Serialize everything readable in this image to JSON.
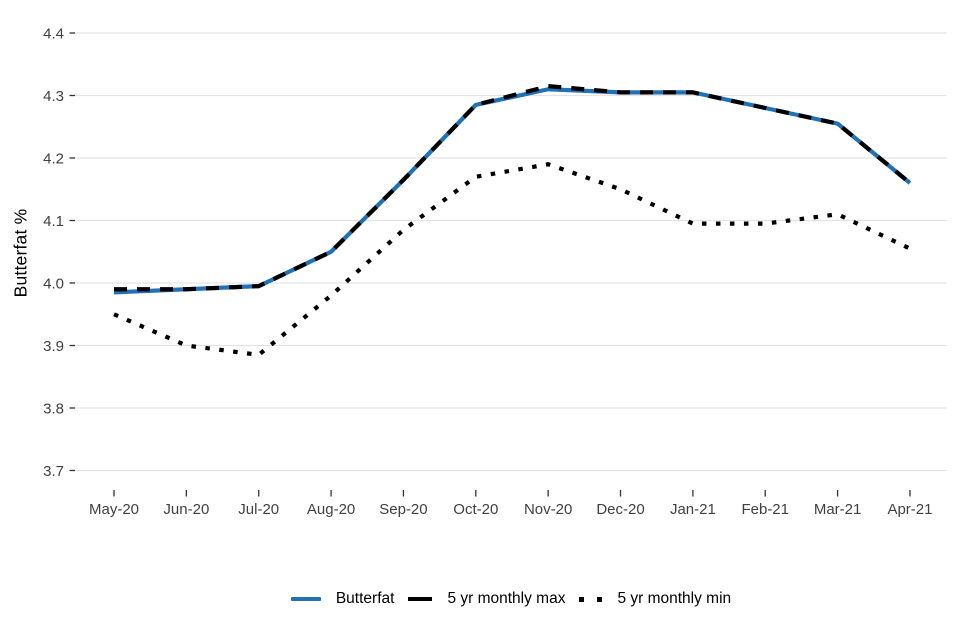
{
  "chart_data": {
    "type": "line",
    "title": "",
    "xlabel": "",
    "ylabel": "Butterfat %",
    "categories": [
      "May-20",
      "Jun-20",
      "Jul-20",
      "Aug-20",
      "Sep-20",
      "Oct-20",
      "Nov-20",
      "Dec-20",
      "Jan-21",
      "Feb-21",
      "Mar-21",
      "Apr-21"
    ],
    "series": [
      {
        "name": "Butterfat",
        "style": "solid",
        "color": "#2171b5",
        "values": [
          3.985,
          3.99,
          3.995,
          4.05,
          4.165,
          4.285,
          4.31,
          4.305,
          4.305,
          4.28,
          4.255,
          4.16
        ]
      },
      {
        "name": "5 yr monthly max",
        "style": "dashed",
        "color": "#000000",
        "values": [
          3.99,
          3.99,
          3.995,
          4.05,
          4.165,
          4.285,
          4.315,
          4.305,
          4.305,
          4.28,
          4.255,
          4.16
        ]
      },
      {
        "name": "5 yr monthly min",
        "style": "dotted",
        "color": "#000000",
        "values": [
          3.95,
          3.9,
          3.885,
          3.98,
          4.085,
          4.17,
          4.19,
          4.15,
          4.095,
          4.095,
          4.11,
          4.055
        ]
      }
    ],
    "ylim": [
      3.65,
      4.43
    ],
    "yticks": [
      3.7,
      3.8,
      3.9,
      4.0,
      4.1,
      4.2,
      4.3,
      4.4
    ],
    "ytick_labels": [
      "3.7",
      "3.8",
      "3.9",
      "4.0",
      "4.1",
      "4.2",
      "4.3",
      "4.4"
    ],
    "grid": "horizontal",
    "legend_position": "bottom",
    "colors": {
      "grid": "#e3e3e3",
      "axis_text": "#404040",
      "tick_mark": "#333333"
    }
  }
}
